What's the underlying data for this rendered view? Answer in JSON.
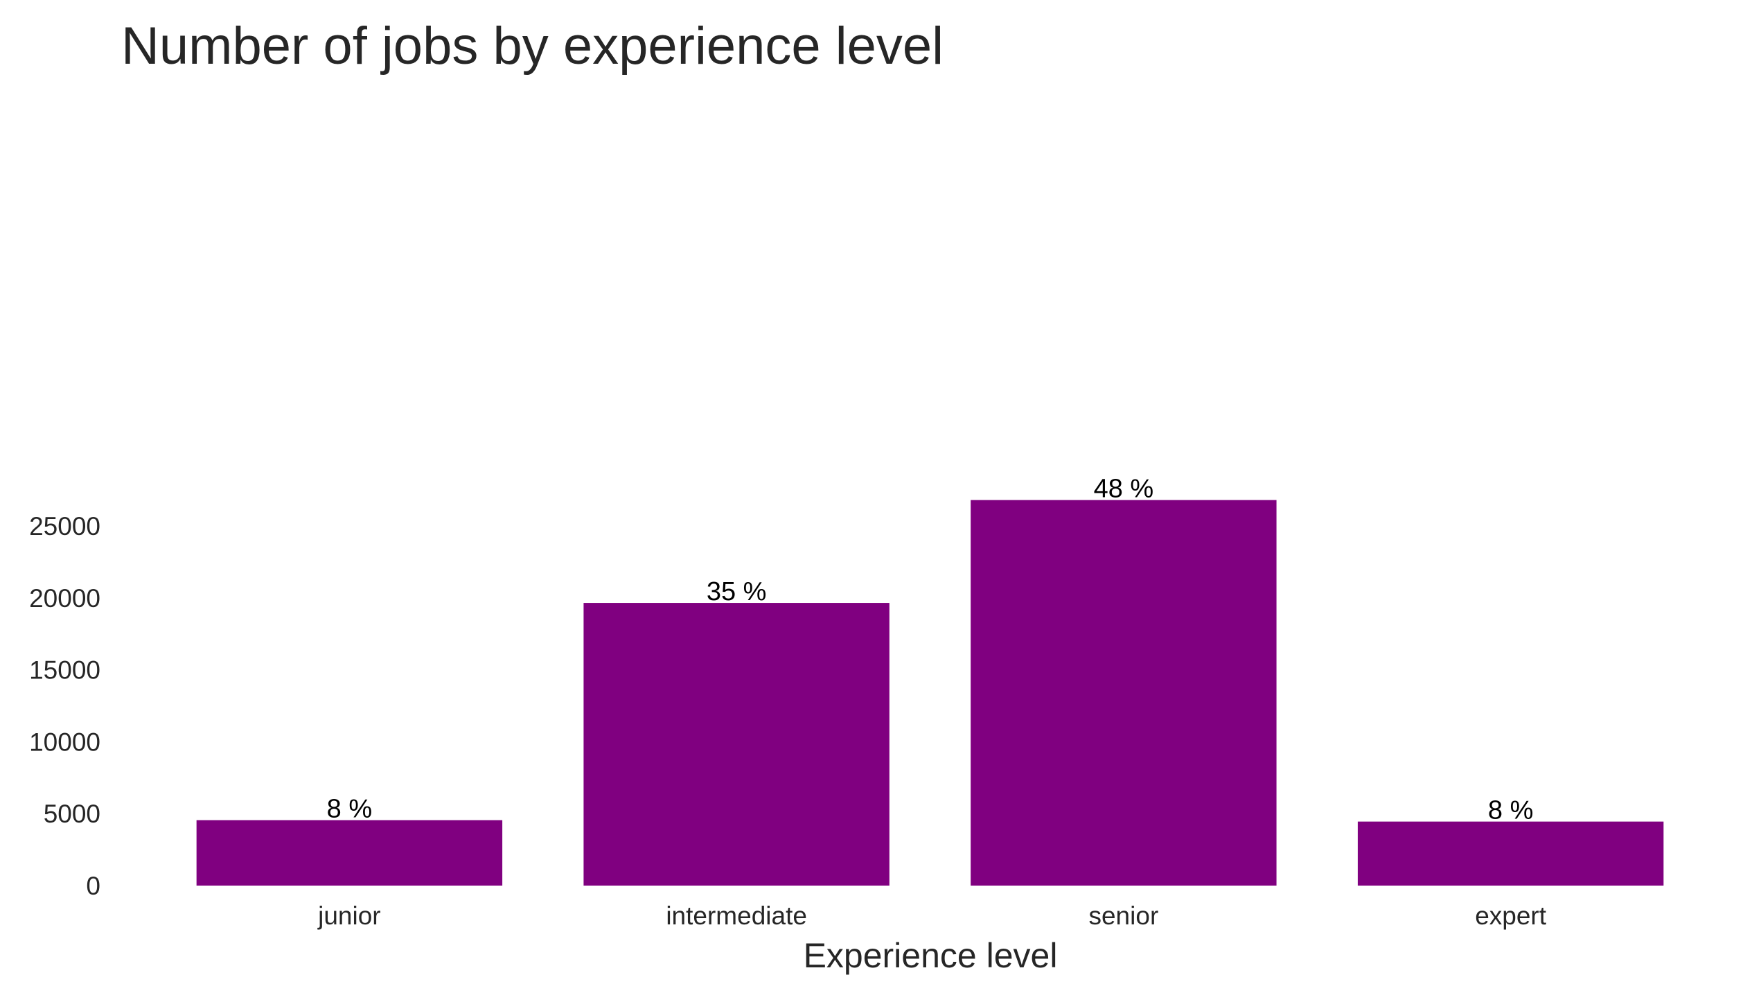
{
  "chart_data": {
    "type": "bar",
    "title": "Number of jobs by experience level",
    "xlabel": "Experience level",
    "ylabel": "",
    "categories": [
      "junior",
      "intermediate",
      "senior",
      "expert"
    ],
    "values": [
      4550,
      19650,
      26800,
      4450
    ],
    "bar_labels": [
      "8 %",
      "35 %",
      "48 %",
      "8 %"
    ],
    "yticks": [
      0,
      5000,
      10000,
      15000,
      20000,
      25000
    ],
    "ytick_labels": [
      "0",
      "5000",
      "10000",
      "15000",
      "20000",
      "25000"
    ],
    "ylim": [
      0,
      28200
    ],
    "grid": false,
    "legend": "none",
    "bar_color": "#800080"
  }
}
